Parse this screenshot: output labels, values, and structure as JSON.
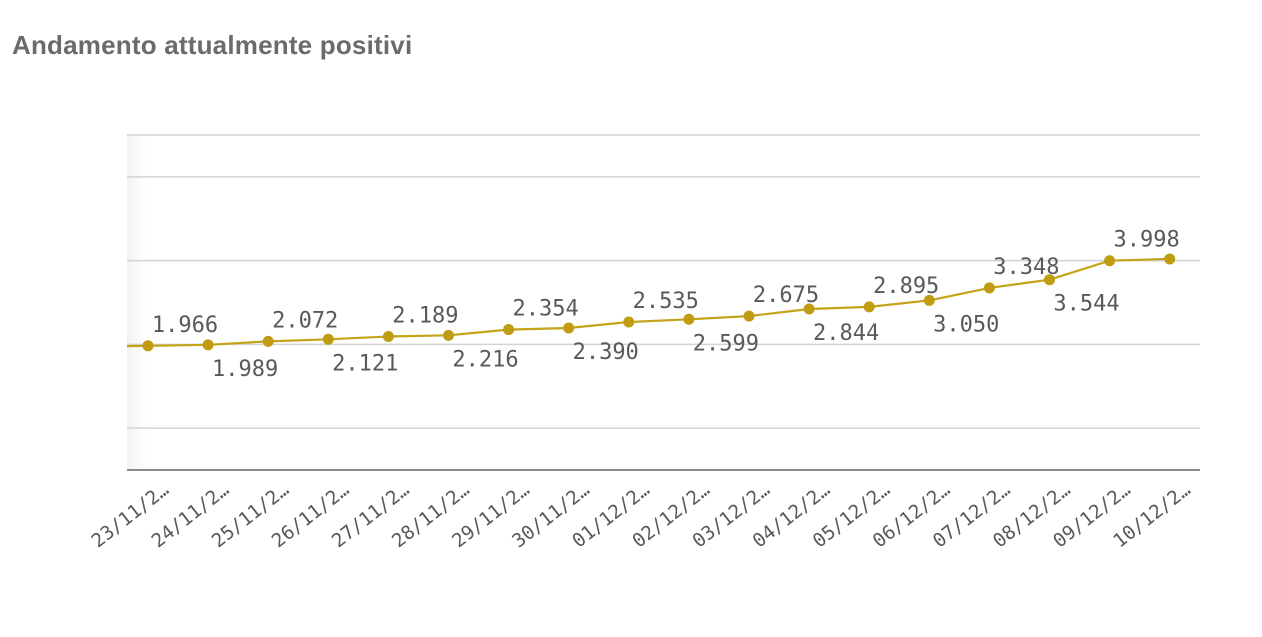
{
  "title": "Andamento attualmente positivi",
  "colors": {
    "line": "#c4a317",
    "point": "#bf9c12",
    "grid": "#d3d3d3",
    "axis": "#8c8c8c",
    "text": "#595959",
    "title": "#6b6b6b"
  },
  "chart_data": {
    "type": "line",
    "title": "Andamento attualmente positivi",
    "xlabel": "",
    "ylabel": "",
    "categories": [
      "23/11/2…",
      "24/11/2…",
      "25/11/2…",
      "26/11/2…",
      "27/11/2…",
      "28/11/2…",
      "29/11/2…",
      "30/11/2…",
      "01/12/2…",
      "02/12/2…",
      "03/12/2…",
      "04/12/2…",
      "05/12/2…",
      "06/12/2…",
      "07/12/2…",
      "08/12/2…",
      "09/12/2…",
      "10/12/2…"
    ],
    "series": [
      {
        "values": [
          1966,
          1989,
          2072,
          2121,
          2189,
          2216,
          2354,
          2390,
          2535,
          2599,
          2675,
          2844,
          2895,
          3050,
          3348,
          3544,
          3998,
          4040
        ],
        "labels": [
          "1.966",
          "1.989",
          "2.072",
          "2.121",
          "2.189",
          "2.216",
          "2.354",
          "2.390",
          "2.535",
          "2.599",
          "2.675",
          "2.844",
          "2.895",
          "3.050",
          "3.348",
          "3.544",
          "3.998",
          ""
        ]
      }
    ],
    "ylim": [
      -1000,
      7000
    ],
    "yticks": [
      0,
      2000,
      4000,
      6000
    ],
    "grid": true,
    "y_tick_labels_shown": false,
    "legend": "none"
  }
}
